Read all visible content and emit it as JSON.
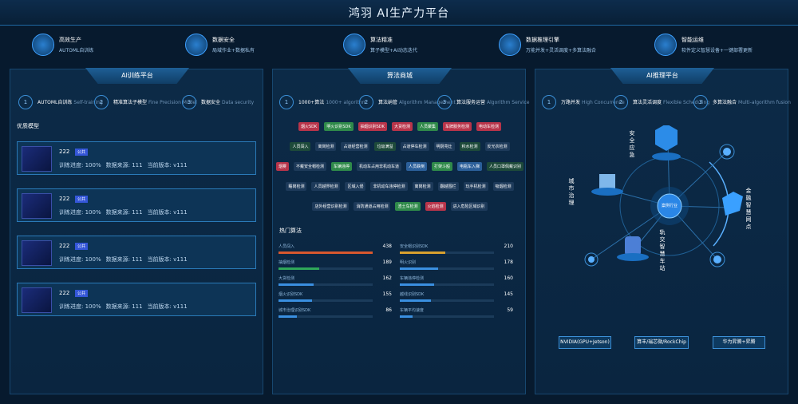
{
  "header": {
    "title": "鸿羽 AI生产力平台"
  },
  "features": [
    {
      "title": "高效生产",
      "subtitle": "AUTOML自训练"
    },
    {
      "title": "数据安全",
      "subtitle": "局域作业+数据私有"
    },
    {
      "title": "算法精准",
      "subtitle": "算子模型+AI动态迭代"
    },
    {
      "title": "数据推理引擎",
      "subtitle": "万能并发+灵活调度+多算法融合"
    },
    {
      "title": "智能运维",
      "subtitle": "软件定义智慧设备+一键部署更新"
    }
  ],
  "training": {
    "title": "AI训练平台",
    "steps": [
      {
        "num": "1",
        "title": "AUTOML自训练",
        "sub": "Self-training"
      },
      {
        "num": "2",
        "title": "精准算法子模型",
        "sub": "Fine Precision Model"
      },
      {
        "num": "3",
        "title": "数据安全",
        "sub": "Data security"
      }
    ],
    "section": "优质模型",
    "models": [
      {
        "name": "222",
        "tag": "公共",
        "progress": "训练进度: 100%",
        "source": "数据来源: 111",
        "version": "当前版本: v111"
      },
      {
        "name": "222",
        "tag": "公共",
        "progress": "训练进度: 100%",
        "source": "数据来源: 111",
        "version": "当前版本: v111"
      },
      {
        "name": "222",
        "tag": "公共",
        "progress": "训练进度: 100%",
        "source": "数据来源: 111",
        "version": "当前版本: v111"
      },
      {
        "name": "222",
        "tag": "公共",
        "progress": "训练进度: 100%",
        "source": "数据来源: 111",
        "version": "当前版本: v111"
      }
    ]
  },
  "market": {
    "title": "算法商城",
    "steps": [
      {
        "num": "1",
        "title": "1000+算法",
        "sub": "1000+ algorithm"
      },
      {
        "num": "2",
        "title": "算法纳管",
        "sub": "Algorithm Management"
      },
      {
        "num": "3",
        "title": "算法服务运营",
        "sub": "Algorithm Service"
      }
    ],
    "tag_rows": [
      [
        {
          "text": "烟火SDK",
          "color": "#b8344a"
        },
        {
          "text": "明火识别SDK",
          "color": "#2f8a4a"
        },
        {
          "text": "抽烟识别SDK",
          "color": "#b8344a"
        },
        {
          "text": "大货检测",
          "color": "#b8344a"
        },
        {
          "text": "人员聚集",
          "color": "#2f8a4a"
        },
        {
          "text": "车牌服务检测",
          "color": "#b8344a"
        },
        {
          "text": "电动车检测",
          "color": "#b8344a"
        }
      ],
      [
        {
          "text": "人员闯入",
          "color": "#1d4a3a"
        },
        {
          "text": "离岗检测",
          "color": "#1d3a5a"
        },
        {
          "text": "占道经营检测",
          "color": "#1d3a5a"
        },
        {
          "text": "垃圾满溢",
          "color": "#1d4a3a"
        },
        {
          "text": "占道停车检测",
          "color": "#1d3a5a"
        },
        {
          "text": "明厨亮灶",
          "color": "#1d3a5a"
        },
        {
          "text": "积水检测",
          "color": "#1d4a3a"
        },
        {
          "text": "反光衣检测",
          "color": "#1d3a5a"
        }
      ],
      [
        {
          "text": "烟雾",
          "color": "#b8344a"
        },
        {
          "text": "不戴安全帽检测",
          "color": "#1d3a5a"
        },
        {
          "text": "车辆违停",
          "color": "#2f8a4a"
        },
        {
          "text": "机动车占用非机动车道",
          "color": "#1d3a5a"
        },
        {
          "text": "人员跌倒",
          "color": "#2b5f9a"
        },
        {
          "text": "打架斗殴",
          "color": "#2f8a4a"
        },
        {
          "text": "电瓶车入梯",
          "color": "#2b5f9a"
        },
        {
          "text": "人员口罩佩戴识别",
          "color": "#1d4a3a"
        }
      ],
      [
        {
          "text": "睡岗检测",
          "color": "#1d3a5a"
        },
        {
          "text": "人员越界检测",
          "color": "#1d3a5a"
        },
        {
          "text": "区域入侵",
          "color": "#1d3a5a"
        },
        {
          "text": "非机动车违停检测",
          "color": "#1d3a5a"
        },
        {
          "text": "离岗检测",
          "color": "#1d3a5a"
        },
        {
          "text": "翻越围栏",
          "color": "#1d3a5a"
        },
        {
          "text": "玩手机检测",
          "color": "#1d3a5a"
        },
        {
          "text": "吸烟检测",
          "color": "#1d3a5a"
        }
      ],
      [
        {
          "text": "店外经营识别检测",
          "color": "#1d3a5a"
        },
        {
          "text": "消防通道占用检测",
          "color": "#1d3a5a"
        },
        {
          "text": "渣土车检测",
          "color": "#2f8a4a"
        },
        {
          "text": "火焰检测",
          "color": "#b8344a"
        },
        {
          "text": "进入危险区域识别",
          "color": "#1d3a5a"
        }
      ]
    ],
    "ranking_title": "热门算法",
    "ranking": [
      {
        "name": "人员闯入",
        "value": 438,
        "color": "#d8582e"
      },
      {
        "name": "安全帽识别SDK",
        "value": 210,
        "color": "#d8a02e"
      },
      {
        "name": "抽烟检测",
        "value": 189,
        "color": "#2fa85a"
      },
      {
        "name": "明火识别",
        "value": 178,
        "color": "#3a8fe0"
      },
      {
        "name": "大货检测",
        "value": 162,
        "color": "#3a8fe0"
      },
      {
        "name": "车辆违停检测",
        "value": 160,
        "color": "#3a8fe0"
      },
      {
        "name": "烟火识别SDK",
        "value": 155,
        "color": "#3a8fe0"
      },
      {
        "name": "越线识别SDK",
        "value": 145,
        "color": "#3a8fe0"
      },
      {
        "name": "城市治理识别SDK",
        "value": 86,
        "color": "#3a8fe0"
      },
      {
        "name": "车辆平均速度",
        "value": 59,
        "color": "#3a8fe0"
      }
    ]
  },
  "inference": {
    "title": "AI推理平台",
    "steps": [
      {
        "num": "1",
        "title": "万路并发",
        "sub": "High Concurrence"
      },
      {
        "num": "2",
        "title": "算法灵活调度",
        "sub": "Flexible Scheduling"
      },
      {
        "num": "3",
        "title": "多算法融合",
        "sub": "Multi-algorithm fusion"
      }
    ],
    "center": "案例行业",
    "nodes": [
      "安全应急",
      "城市治理",
      "金融智慧网点",
      "轨交智慧车站"
    ],
    "buttons": [
      "NVIDIA(GPU+Jetson)",
      "算丰/瑞芯微/RockChip",
      "华为昇腾+昇腾"
    ]
  }
}
